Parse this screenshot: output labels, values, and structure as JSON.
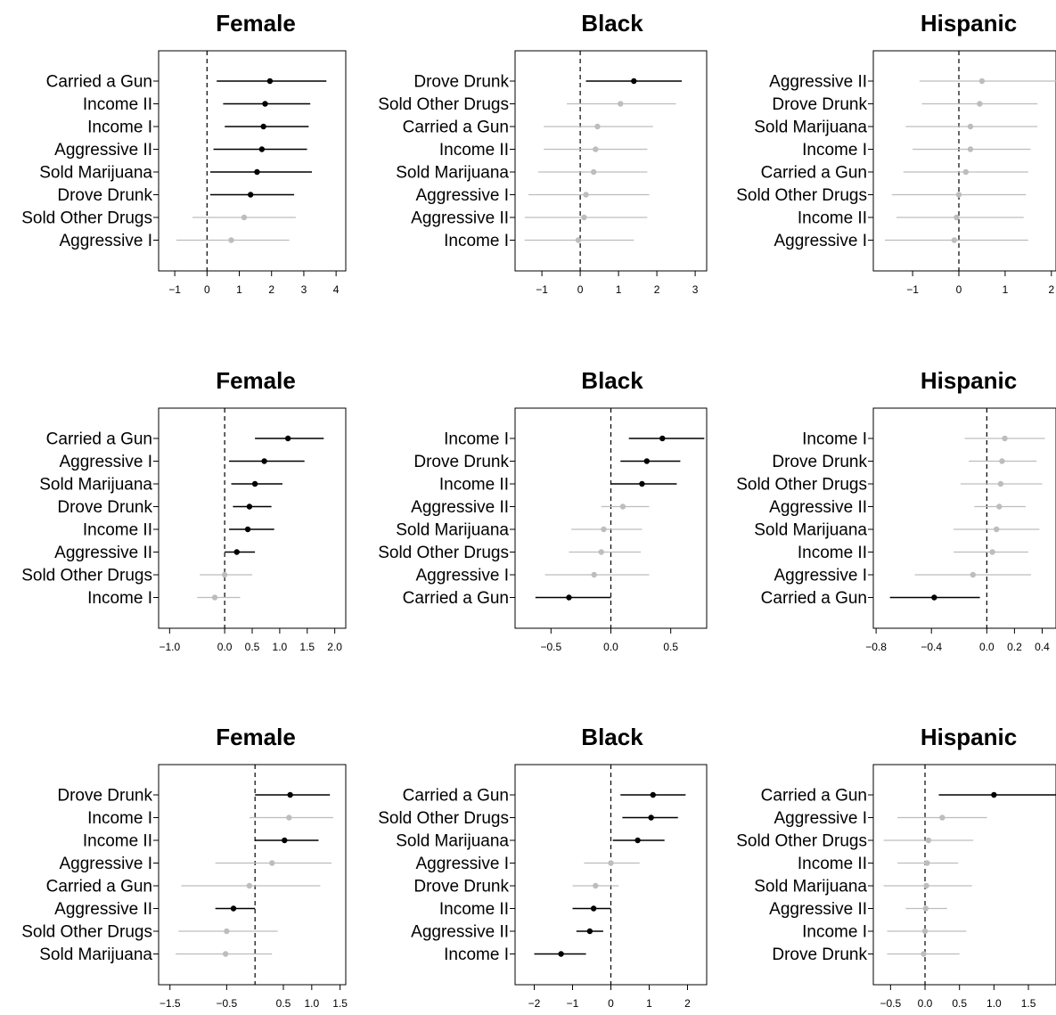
{
  "colors": {
    "significant": "#000000",
    "nonsignificant": "#bdbdbd",
    "frame": "#000000",
    "zero_line": "#000000"
  },
  "chart_data": [
    {
      "type": "forest",
      "title": "Female",
      "xlim": [
        -1.5,
        4.3
      ],
      "xticks": [
        -1,
        0,
        1,
        2,
        3,
        4
      ],
      "xtick_labels": [
        "−1",
        "0",
        "1",
        "2",
        "3",
        "4"
      ],
      "zero_line": true,
      "rows": [
        {
          "label": "Carried a Gun",
          "est": 1.95,
          "lo": 0.3,
          "hi": 3.7,
          "sig": true
        },
        {
          "label": "Income II",
          "est": 1.8,
          "lo": 0.5,
          "hi": 3.2,
          "sig": true
        },
        {
          "label": "Income I",
          "est": 1.75,
          "lo": 0.55,
          "hi": 3.15,
          "sig": true
        },
        {
          "label": "Aggressive II",
          "est": 1.7,
          "lo": 0.2,
          "hi": 3.1,
          "sig": true
        },
        {
          "label": "Sold Marijuana",
          "est": 1.55,
          "lo": 0.1,
          "hi": 3.25,
          "sig": true
        },
        {
          "label": "Drove Drunk",
          "est": 1.35,
          "lo": 0.1,
          "hi": 2.7,
          "sig": true
        },
        {
          "label": "Sold Other Drugs",
          "est": 1.15,
          "lo": -0.45,
          "hi": 2.75,
          "sig": false
        },
        {
          "label": "Aggressive I",
          "est": 0.75,
          "lo": -0.95,
          "hi": 2.55,
          "sig": false
        }
      ]
    },
    {
      "type": "forest",
      "title": "Black",
      "xlim": [
        -1.7,
        3.3
      ],
      "xticks": [
        -1,
        0,
        1,
        2,
        3
      ],
      "xtick_labels": [
        "−1",
        "0",
        "1",
        "2",
        "3"
      ],
      "zero_line": true,
      "rows": [
        {
          "label": "Drove Drunk",
          "est": 1.4,
          "lo": 0.15,
          "hi": 2.65,
          "sig": true
        },
        {
          "label": "Sold Other Drugs",
          "est": 1.05,
          "lo": -0.35,
          "hi": 2.5,
          "sig": false
        },
        {
          "label": "Carried a Gun",
          "est": 0.45,
          "lo": -0.95,
          "hi": 1.9,
          "sig": false
        },
        {
          "label": "Income II",
          "est": 0.4,
          "lo": -0.95,
          "hi": 1.75,
          "sig": false
        },
        {
          "label": "Sold Marijuana",
          "est": 0.35,
          "lo": -1.1,
          "hi": 1.75,
          "sig": false
        },
        {
          "label": "Aggressive I",
          "est": 0.15,
          "lo": -1.35,
          "hi": 1.8,
          "sig": false
        },
        {
          "label": "Aggressive II",
          "est": 0.1,
          "lo": -1.45,
          "hi": 1.75,
          "sig": false
        },
        {
          "label": "Income I",
          "est": -0.05,
          "lo": -1.45,
          "hi": 1.4,
          "sig": false
        }
      ]
    },
    {
      "type": "forest",
      "title": "Hispanic",
      "xlim": [
        -1.85,
        2.1
      ],
      "xticks": [
        -1,
        0,
        1,
        2
      ],
      "xtick_labels": [
        "−1",
        "0",
        "1",
        "2"
      ],
      "zero_line": true,
      "rows": [
        {
          "label": "Aggressive II",
          "est": 0.5,
          "lo": -0.85,
          "hi": 2.1,
          "sig": false
        },
        {
          "label": "Drove Drunk",
          "est": 0.45,
          "lo": -0.8,
          "hi": 1.7,
          "sig": false
        },
        {
          "label": "Sold Marijuana",
          "est": 0.25,
          "lo": -1.15,
          "hi": 1.7,
          "sig": false
        },
        {
          "label": "Income I",
          "est": 0.25,
          "lo": -1.0,
          "hi": 1.55,
          "sig": false
        },
        {
          "label": "Carried a Gun",
          "est": 0.15,
          "lo": -1.2,
          "hi": 1.5,
          "sig": false
        },
        {
          "label": "Sold Other Drugs",
          "est": 0.0,
          "lo": -1.45,
          "hi": 1.45,
          "sig": false
        },
        {
          "label": "Income II",
          "est": -0.05,
          "lo": -1.35,
          "hi": 1.4,
          "sig": false
        },
        {
          "label": "Aggressive I",
          "est": -0.1,
          "lo": -1.6,
          "hi": 1.5,
          "sig": false
        }
      ]
    },
    {
      "type": "forest",
      "title": "Female",
      "xlim": [
        -1.2,
        2.2
      ],
      "xticks": [
        -1.0,
        0.0,
        0.5,
        1.0,
        1.5,
        2.0
      ],
      "xtick_labels": [
        "−1.0",
        "0.0",
        "0.5",
        "1.0",
        "1.5",
        "2.0"
      ],
      "zero_line": true,
      "rows": [
        {
          "label": "Carried a Gun",
          "est": 1.15,
          "lo": 0.55,
          "hi": 1.8,
          "sig": true
        },
        {
          "label": "Aggressive I",
          "est": 0.72,
          "lo": 0.08,
          "hi": 1.45,
          "sig": true
        },
        {
          "label": "Sold Marijuana",
          "est": 0.55,
          "lo": 0.12,
          "hi": 1.05,
          "sig": true
        },
        {
          "label": "Drove Drunk",
          "est": 0.45,
          "lo": 0.15,
          "hi": 0.85,
          "sig": true
        },
        {
          "label": "Income II",
          "est": 0.42,
          "lo": 0.08,
          "hi": 0.9,
          "sig": true
        },
        {
          "label": "Aggressive II",
          "est": 0.22,
          "lo": 0.0,
          "hi": 0.55,
          "sig": true
        },
        {
          "label": "Sold Other Drugs",
          "est": 0.0,
          "lo": -0.45,
          "hi": 0.5,
          "sig": false
        },
        {
          "label": "Income I",
          "est": -0.18,
          "lo": -0.5,
          "hi": 0.28,
          "sig": false
        }
      ]
    },
    {
      "type": "forest",
      "title": "Black",
      "xlim": [
        -0.8,
        0.8
      ],
      "xticks": [
        -0.5,
        0.0,
        0.5
      ],
      "xtick_labels": [
        "−0.5",
        "0.0",
        "0.5"
      ],
      "zero_line": true,
      "rows": [
        {
          "label": "Income I",
          "est": 0.43,
          "lo": 0.15,
          "hi": 0.78,
          "sig": true
        },
        {
          "label": "Drove Drunk",
          "est": 0.3,
          "lo": 0.08,
          "hi": 0.58,
          "sig": true
        },
        {
          "label": "Income II",
          "est": 0.26,
          "lo": 0.0,
          "hi": 0.55,
          "sig": true
        },
        {
          "label": "Aggressive II",
          "est": 0.1,
          "lo": -0.08,
          "hi": 0.32,
          "sig": false
        },
        {
          "label": "Sold Marijuana",
          "est": -0.06,
          "lo": -0.33,
          "hi": 0.26,
          "sig": false
        },
        {
          "label": "Sold Other Drugs",
          "est": -0.08,
          "lo": -0.35,
          "hi": 0.25,
          "sig": false
        },
        {
          "label": "Aggressive I",
          "est": -0.14,
          "lo": -0.55,
          "hi": 0.32,
          "sig": false
        },
        {
          "label": "Carried a Gun",
          "est": -0.35,
          "lo": -0.63,
          "hi": 0.0,
          "sig": true
        }
      ]
    },
    {
      "type": "forest",
      "title": "Hispanic",
      "xlim": [
        -0.82,
        0.5
      ],
      "xticks": [
        -0.8,
        -0.4,
        0.0,
        0.2,
        0.4
      ],
      "xtick_labels": [
        "−0.8",
        "−0.4",
        "0.0",
        "0.2",
        "0.4"
      ],
      "zero_line": true,
      "rows": [
        {
          "label": "Income I",
          "est": 0.13,
          "lo": -0.16,
          "hi": 0.42,
          "sig": false
        },
        {
          "label": "Drove Drunk",
          "est": 0.11,
          "lo": -0.13,
          "hi": 0.36,
          "sig": false
        },
        {
          "label": "Sold Other Drugs",
          "est": 0.1,
          "lo": -0.19,
          "hi": 0.4,
          "sig": false
        },
        {
          "label": "Aggressive II",
          "est": 0.09,
          "lo": -0.09,
          "hi": 0.28,
          "sig": false
        },
        {
          "label": "Sold Marijuana",
          "est": 0.07,
          "lo": -0.24,
          "hi": 0.38,
          "sig": false
        },
        {
          "label": "Income II",
          "est": 0.04,
          "lo": -0.24,
          "hi": 0.3,
          "sig": false
        },
        {
          "label": "Aggressive I",
          "est": -0.1,
          "lo": -0.52,
          "hi": 0.32,
          "sig": false
        },
        {
          "label": "Carried a Gun",
          "est": -0.38,
          "lo": -0.7,
          "hi": -0.05,
          "sig": true
        }
      ]
    },
    {
      "type": "forest",
      "title": "Female",
      "xlim": [
        -1.7,
        1.6
      ],
      "xticks": [
        -1.5,
        -0.5,
        0.5,
        1.0,
        1.5
      ],
      "xtick_labels": [
        "−1.5",
        "−0.5",
        "0.5",
        "1.0",
        "1.5"
      ],
      "zero_line": true,
      "rows": [
        {
          "label": "Drove Drunk",
          "est": 0.62,
          "lo": 0.0,
          "hi": 1.32,
          "sig": true
        },
        {
          "label": "Income I",
          "est": 0.6,
          "lo": -0.1,
          "hi": 1.38,
          "sig": false
        },
        {
          "label": "Income II",
          "est": 0.52,
          "lo": 0.0,
          "hi": 1.12,
          "sig": true
        },
        {
          "label": "Aggressive I",
          "est": 0.3,
          "lo": -0.7,
          "hi": 1.35,
          "sig": false
        },
        {
          "label": "Carried a Gun",
          "est": -0.1,
          "lo": -1.3,
          "hi": 1.15,
          "sig": false
        },
        {
          "label": "Aggressive II",
          "est": -0.38,
          "lo": -0.7,
          "hi": 0.0,
          "sig": true
        },
        {
          "label": "Sold Other Drugs",
          "est": -0.5,
          "lo": -1.35,
          "hi": 0.4,
          "sig": false
        },
        {
          "label": "Sold Marijuana",
          "est": -0.52,
          "lo": -1.4,
          "hi": 0.3,
          "sig": false
        }
      ]
    },
    {
      "type": "forest",
      "title": "Black",
      "xlim": [
        -2.5,
        2.5
      ],
      "xticks": [
        -2,
        -1,
        0,
        1,
        2
      ],
      "xtick_labels": [
        "−2",
        "−1",
        "0",
        "1",
        "2"
      ],
      "zero_line": true,
      "rows": [
        {
          "label": "Carried a Gun",
          "est": 1.1,
          "lo": 0.25,
          "hi": 1.95,
          "sig": true
        },
        {
          "label": "Sold Other Drugs",
          "est": 1.05,
          "lo": 0.3,
          "hi": 1.75,
          "sig": true
        },
        {
          "label": "Sold Marijuana",
          "est": 0.7,
          "lo": 0.05,
          "hi": 1.4,
          "sig": true
        },
        {
          "label": "Aggressive I",
          "est": 0.0,
          "lo": -0.7,
          "hi": 0.75,
          "sig": false
        },
        {
          "label": "Drove Drunk",
          "est": -0.4,
          "lo": -1.0,
          "hi": 0.2,
          "sig": false
        },
        {
          "label": "Income II",
          "est": -0.45,
          "lo": -1.0,
          "hi": 0.0,
          "sig": true
        },
        {
          "label": "Aggressive II",
          "est": -0.55,
          "lo": -0.9,
          "hi": -0.2,
          "sig": true
        },
        {
          "label": "Income I",
          "est": -1.3,
          "lo": -2.0,
          "hi": -0.65,
          "sig": true
        }
      ]
    },
    {
      "type": "forest",
      "title": "Hispanic",
      "xlim": [
        -0.75,
        1.9
      ],
      "xticks": [
        -0.5,
        0.0,
        0.5,
        1.0,
        1.5
      ],
      "xtick_labels": [
        "−0.5",
        "0.0",
        "0.5",
        "1.0",
        "1.5"
      ],
      "zero_line": true,
      "rows": [
        {
          "label": "Carried a Gun",
          "est": 1.0,
          "lo": 0.2,
          "hi": 1.9,
          "sig": true
        },
        {
          "label": "Aggressive I",
          "est": 0.25,
          "lo": -0.4,
          "hi": 0.9,
          "sig": false
        },
        {
          "label": "Sold Other Drugs",
          "est": 0.05,
          "lo": -0.6,
          "hi": 0.7,
          "sig": false
        },
        {
          "label": "Income II",
          "est": 0.03,
          "lo": -0.4,
          "hi": 0.48,
          "sig": false
        },
        {
          "label": "Sold Marijuana",
          "est": 0.02,
          "lo": -0.6,
          "hi": 0.68,
          "sig": false
        },
        {
          "label": "Aggressive II",
          "est": 0.01,
          "lo": -0.28,
          "hi": 0.32,
          "sig": false
        },
        {
          "label": "Income I",
          "est": 0.0,
          "lo": -0.55,
          "hi": 0.6,
          "sig": false
        },
        {
          "label": "Drove Drunk",
          "est": -0.02,
          "lo": -0.55,
          "hi": 0.5,
          "sig": false
        }
      ]
    }
  ]
}
